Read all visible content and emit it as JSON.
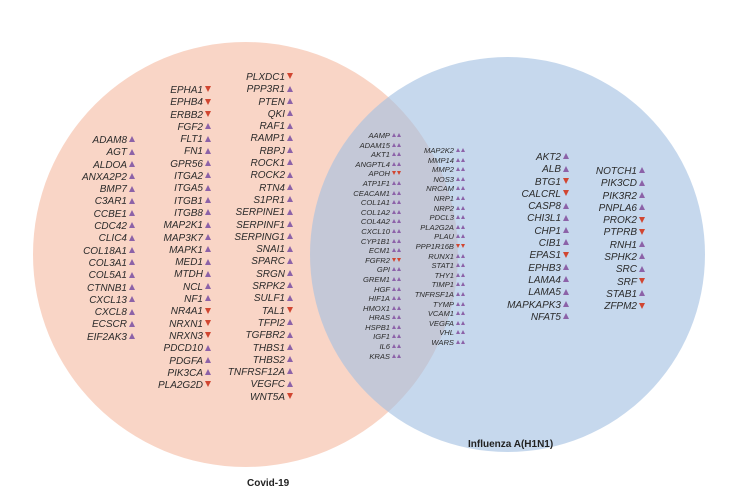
{
  "labels": {
    "covid": "Covid-19",
    "flu": "Influenza A(H1N1)"
  },
  "colors": {
    "covid_fill": "#f7c5b0",
    "flu_fill": "#a3c0e2",
    "up": "#8c62a8",
    "down": "#d14631"
  },
  "columns": {
    "covid_a": [
      {
        "name": "ADAM8",
        "m": [
          "up"
        ]
      },
      {
        "name": "AGT",
        "m": [
          "up"
        ]
      },
      {
        "name": "ALDOA",
        "m": [
          "up"
        ]
      },
      {
        "name": "ANXA2P2",
        "m": [
          "up"
        ]
      },
      {
        "name": "BMP7",
        "m": [
          "up"
        ]
      },
      {
        "name": "C3AR1",
        "m": [
          "up"
        ]
      },
      {
        "name": "CCBE1",
        "m": [
          "up"
        ]
      },
      {
        "name": "CDC42",
        "m": [
          "up"
        ]
      },
      {
        "name": "CLIC4",
        "m": [
          "up"
        ]
      },
      {
        "name": "COL18A1",
        "m": [
          "up"
        ]
      },
      {
        "name": "COL3A1",
        "m": [
          "up"
        ]
      },
      {
        "name": "COL5A1",
        "m": [
          "up"
        ]
      },
      {
        "name": "CTNNB1",
        "m": [
          "up"
        ]
      },
      {
        "name": "CXCL13",
        "m": [
          "up"
        ]
      },
      {
        "name": "CXCL8",
        "m": [
          "up"
        ]
      },
      {
        "name": "ECSCR",
        "m": [
          "up"
        ]
      },
      {
        "name": "EIF2AK3",
        "m": [
          "up"
        ]
      }
    ],
    "covid_b": [
      {
        "name": "EPHA1",
        "m": [
          "down"
        ]
      },
      {
        "name": "EPHB4",
        "m": [
          "down"
        ]
      },
      {
        "name": "ERBB2",
        "m": [
          "down"
        ]
      },
      {
        "name": "FGF2",
        "m": [
          "up"
        ]
      },
      {
        "name": "FLT1",
        "m": [
          "up"
        ]
      },
      {
        "name": "FN1",
        "m": [
          "up"
        ]
      },
      {
        "name": "GPR56",
        "m": [
          "up"
        ]
      },
      {
        "name": "ITGA2",
        "m": [
          "up"
        ]
      },
      {
        "name": "ITGA5",
        "m": [
          "up"
        ]
      },
      {
        "name": "ITGB1",
        "m": [
          "up"
        ]
      },
      {
        "name": "ITGB8",
        "m": [
          "up"
        ]
      },
      {
        "name": "MAP2K1",
        "m": [
          "up"
        ]
      },
      {
        "name": "MAP3K7",
        "m": [
          "up"
        ]
      },
      {
        "name": "MAPK1",
        "m": [
          "up"
        ]
      },
      {
        "name": "MED1",
        "m": [
          "up"
        ]
      },
      {
        "name": "MTDH",
        "m": [
          "up"
        ]
      },
      {
        "name": "NCL",
        "m": [
          "up"
        ]
      },
      {
        "name": "NF1",
        "m": [
          "up"
        ]
      },
      {
        "name": "NR4A1",
        "m": [
          "down"
        ]
      },
      {
        "name": "NRXN1",
        "m": [
          "down"
        ]
      },
      {
        "name": "NRXN3",
        "m": [
          "down"
        ]
      },
      {
        "name": "PDCD10",
        "m": [
          "up"
        ]
      },
      {
        "name": "PDGFA",
        "m": [
          "up"
        ]
      },
      {
        "name": "PIK3CA",
        "m": [
          "up"
        ]
      },
      {
        "name": "PLA2G2D",
        "m": [
          "down"
        ]
      }
    ],
    "covid_c": [
      {
        "name": "PLXDC1",
        "m": [
          "down"
        ]
      },
      {
        "name": "PPP3R1",
        "m": [
          "up"
        ]
      },
      {
        "name": "PTEN",
        "m": [
          "up"
        ]
      },
      {
        "name": "QKI",
        "m": [
          "up"
        ]
      },
      {
        "name": "RAF1",
        "m": [
          "up"
        ]
      },
      {
        "name": "RAMP1",
        "m": [
          "up"
        ]
      },
      {
        "name": "RBPJ",
        "m": [
          "up"
        ]
      },
      {
        "name": "ROCK1",
        "m": [
          "up"
        ]
      },
      {
        "name": "ROCK2",
        "m": [
          "up"
        ]
      },
      {
        "name": "RTN4",
        "m": [
          "up"
        ]
      },
      {
        "name": "S1PR1",
        "m": [
          "up"
        ]
      },
      {
        "name": "SERPINE1",
        "m": [
          "up"
        ]
      },
      {
        "name": "SERPINF1",
        "m": [
          "up"
        ]
      },
      {
        "name": "SERPING1",
        "m": [
          "up"
        ]
      },
      {
        "name": "SNAI1",
        "m": [
          "up"
        ]
      },
      {
        "name": "SPARC",
        "m": [
          "up"
        ]
      },
      {
        "name": "SRGN",
        "m": [
          "up"
        ]
      },
      {
        "name": "SRPK2",
        "m": [
          "up"
        ]
      },
      {
        "name": "SULF1",
        "m": [
          "up"
        ]
      },
      {
        "name": "TAL1",
        "m": [
          "down"
        ]
      },
      {
        "name": "TFPI2",
        "m": [
          "up"
        ]
      },
      {
        "name": "TGFBR2",
        "m": [
          "up"
        ]
      },
      {
        "name": "THBS1",
        "m": [
          "up"
        ]
      },
      {
        "name": "THBS2",
        "m": [
          "up"
        ]
      },
      {
        "name": "TNFRSF12A",
        "m": [
          "up"
        ]
      },
      {
        "name": "VEGFC",
        "m": [
          "up"
        ]
      },
      {
        "name": "WNT5A",
        "m": [
          "down"
        ]
      }
    ],
    "shared_a": [
      {
        "name": "AAMP",
        "m": [
          "up",
          "up"
        ]
      },
      {
        "name": "ADAM15",
        "m": [
          "up",
          "up"
        ]
      },
      {
        "name": "AKT1",
        "m": [
          "up",
          "up"
        ]
      },
      {
        "name": "ANGPTL4",
        "m": [
          "up",
          "up"
        ]
      },
      {
        "name": "APOH",
        "m": [
          "down",
          "down"
        ]
      },
      {
        "name": "ATP1F1",
        "m": [
          "up",
          "up"
        ]
      },
      {
        "name": "CEACAM1",
        "m": [
          "up",
          "up"
        ]
      },
      {
        "name": "COL1A1",
        "m": [
          "up",
          "up"
        ]
      },
      {
        "name": "COL1A2",
        "m": [
          "up",
          "up"
        ]
      },
      {
        "name": "COL4A2",
        "m": [
          "up",
          "up"
        ]
      },
      {
        "name": "CXCL10",
        "m": [
          "up",
          "up"
        ]
      },
      {
        "name": "CYP1B1",
        "m": [
          "up",
          "up"
        ]
      },
      {
        "name": "ECM1",
        "m": [
          "up",
          "up"
        ]
      },
      {
        "name": "FGFR2",
        "m": [
          "down",
          "down"
        ]
      },
      {
        "name": "GPI",
        "m": [
          "up",
          "up"
        ]
      },
      {
        "name": "GREM1",
        "m": [
          "up",
          "up"
        ]
      },
      {
        "name": "HGF",
        "m": [
          "up",
          "up"
        ]
      },
      {
        "name": "HIF1A",
        "m": [
          "up",
          "up"
        ]
      },
      {
        "name": "HMOX1",
        "m": [
          "up",
          "up"
        ]
      },
      {
        "name": "HRAS",
        "m": [
          "up",
          "up"
        ]
      },
      {
        "name": "HSPB1",
        "m": [
          "up",
          "up"
        ]
      },
      {
        "name": "IGF1",
        "m": [
          "up",
          "up"
        ]
      },
      {
        "name": "IL6",
        "m": [
          "up",
          "up"
        ]
      },
      {
        "name": "KRAS",
        "m": [
          "up",
          "up"
        ]
      }
    ],
    "shared_b": [
      {
        "name": "MAP2K2",
        "m": [
          "up",
          "up"
        ]
      },
      {
        "name": "MMP14",
        "m": [
          "up",
          "up"
        ]
      },
      {
        "name": "MMP2",
        "m": [
          "up",
          "up"
        ]
      },
      {
        "name": "NOS3",
        "m": [
          "up",
          "up"
        ]
      },
      {
        "name": "NRCAM",
        "m": [
          "up",
          "up"
        ]
      },
      {
        "name": "NRP1",
        "m": [
          "up",
          "up"
        ]
      },
      {
        "name": "NRP2",
        "m": [
          "up",
          "up"
        ]
      },
      {
        "name": "PDCL3",
        "m": [
          "up",
          "up"
        ]
      },
      {
        "name": "PLA2G2A",
        "m": [
          "up",
          "up"
        ]
      },
      {
        "name": "PLAU",
        "m": [
          "up",
          "up"
        ]
      },
      {
        "name": "PPP1R16B",
        "m": [
          "down",
          "down"
        ]
      },
      {
        "name": "RUNX1",
        "m": [
          "up",
          "up"
        ]
      },
      {
        "name": "STAT1",
        "m": [
          "up",
          "up"
        ]
      },
      {
        "name": "THY1",
        "m": [
          "up",
          "up"
        ]
      },
      {
        "name": "TIMP1",
        "m": [
          "up",
          "up"
        ]
      },
      {
        "name": "TNFRSF1A",
        "m": [
          "up",
          "up"
        ]
      },
      {
        "name": "TYMP",
        "m": [
          "up",
          "up"
        ]
      },
      {
        "name": "VCAM1",
        "m": [
          "up",
          "up"
        ]
      },
      {
        "name": "VEGFA",
        "m": [
          "up",
          "up"
        ]
      },
      {
        "name": "VHL",
        "m": [
          "up",
          "up"
        ]
      },
      {
        "name": "WARS",
        "m": [
          "up",
          "up"
        ]
      }
    ],
    "flu_a": [
      {
        "name": "AKT2",
        "m": [
          "up"
        ]
      },
      {
        "name": "ALB",
        "m": [
          "up"
        ]
      },
      {
        "name": "BTG1",
        "m": [
          "down"
        ]
      },
      {
        "name": "CALCRL",
        "m": [
          "down"
        ]
      },
      {
        "name": "CASP8",
        "m": [
          "up"
        ]
      },
      {
        "name": "CHI3L1",
        "m": [
          "up"
        ]
      },
      {
        "name": "CHP1",
        "m": [
          "up"
        ]
      },
      {
        "name": "CIB1",
        "m": [
          "up"
        ]
      },
      {
        "name": "EPAS1",
        "m": [
          "down"
        ]
      },
      {
        "name": "EPHB3",
        "m": [
          "up"
        ]
      },
      {
        "name": "LAMA4",
        "m": [
          "up"
        ]
      },
      {
        "name": "LAMA5",
        "m": [
          "up"
        ]
      },
      {
        "name": "MAPKAPK3",
        "m": [
          "up"
        ]
      },
      {
        "name": "NFAT5",
        "m": [
          "up"
        ]
      }
    ],
    "flu_b": [
      {
        "name": "NOTCH1",
        "m": [
          "up"
        ]
      },
      {
        "name": "PIK3CD",
        "m": [
          "up"
        ]
      },
      {
        "name": "PIK3R2",
        "m": [
          "up"
        ]
      },
      {
        "name": "PNPLA6",
        "m": [
          "up"
        ]
      },
      {
        "name": "PROK2",
        "m": [
          "down"
        ]
      },
      {
        "name": "PTPRB",
        "m": [
          "down"
        ]
      },
      {
        "name": "RNH1",
        "m": [
          "up"
        ]
      },
      {
        "name": "SPHK2",
        "m": [
          "up"
        ]
      },
      {
        "name": "SRC",
        "m": [
          "up"
        ]
      },
      {
        "name": "SRF",
        "m": [
          "down"
        ]
      },
      {
        "name": "STAB1",
        "m": [
          "up"
        ]
      },
      {
        "name": "ZFPM2",
        "m": [
          "down"
        ]
      }
    ]
  }
}
